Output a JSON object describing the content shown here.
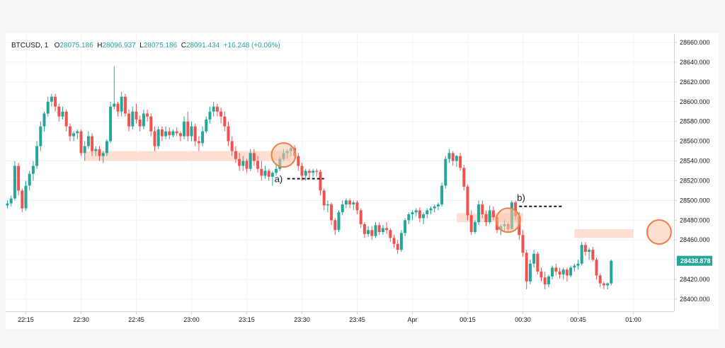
{
  "header": {
    "symbol": "BTCUSD",
    "interval": "1",
    "open_label": "O",
    "open": "28075.186",
    "high_label": "H",
    "high": "28096.937",
    "low_label": "L",
    "low": "28075.186",
    "close_label": "C",
    "close": "28091.434",
    "change": "+16.248 (+0.06%)"
  },
  "colors": {
    "up": "#26a69a",
    "down": "#ef5350",
    "zone": "#fde0d3",
    "circle_fill": "#f7c4a8",
    "circle_stroke": "#ef7d44",
    "price_tag": "#26a69a",
    "grid": "#f0f3fa"
  },
  "annotations": {
    "a": "a)",
    "b": "b)"
  },
  "chart_data": {
    "type": "candlestick",
    "symbol": "BTCUSD",
    "interval": "1",
    "x_ticks": [
      "22:15",
      "22:30",
      "22:45",
      "23:00",
      "23:15",
      "23:30",
      "23:45",
      "Apr",
      "00:15",
      "00:30",
      "00:45",
      "01:00"
    ],
    "x_tick_index": [
      5,
      20,
      35,
      50,
      65,
      80,
      95,
      110,
      125,
      140,
      155,
      170
    ],
    "y_ticks": [
      "28660.000",
      "28640.000",
      "28620.000",
      "28600.000",
      "28580.000",
      "28560.000",
      "28540.000",
      "28520.000",
      "28500.000",
      "28480.000",
      "28460.000",
      "28440.000",
      "28420.000",
      "28400.000"
    ],
    "ylim": [
      28392,
      28662
    ],
    "last_price": "28438.878",
    "candles": [
      [
        28495,
        28500,
        28492,
        28497
      ],
      [
        28497,
        28505,
        28494,
        28502
      ],
      [
        28502,
        28540,
        28500,
        28535
      ],
      [
        28535,
        28538,
        28505,
        28510
      ],
      [
        28510,
        28512,
        28488,
        28492
      ],
      [
        28492,
        28520,
        28490,
        28515
      ],
      [
        28515,
        28530,
        28510,
        28527
      ],
      [
        28527,
        28540,
        28520,
        28535
      ],
      [
        28535,
        28560,
        28532,
        28555
      ],
      [
        28555,
        28580,
        28550,
        28575
      ],
      [
        28575,
        28590,
        28570,
        28588
      ],
      [
        28588,
        28605,
        28585,
        28600
      ],
      [
        28600,
        28608,
        28595,
        28605
      ],
      [
        28605,
        28608,
        28590,
        28595
      ],
      [
        28595,
        28598,
        28580,
        28585
      ],
      [
        28585,
        28595,
        28582,
        28590
      ],
      [
        28590,
        28592,
        28570,
        28575
      ],
      [
        28575,
        28578,
        28560,
        28565
      ],
      [
        28565,
        28570,
        28560,
        28568
      ],
      [
        28568,
        28572,
        28562,
        28570
      ],
      [
        28570,
        28572,
        28545,
        28548
      ],
      [
        28548,
        28560,
        28540,
        28555
      ],
      [
        28555,
        28570,
        28552,
        28565
      ],
      [
        28565,
        28568,
        28545,
        28550
      ],
      [
        28550,
        28555,
        28545,
        28552
      ],
      [
        28552,
        28555,
        28540,
        28545
      ],
      [
        28545,
        28550,
        28538,
        28548
      ],
      [
        28548,
        28562,
        28545,
        28560
      ],
      [
        28560,
        28600,
        28558,
        28595
      ],
      [
        28595,
        28636,
        28592,
        28598
      ],
      [
        28598,
        28600,
        28585,
        28590
      ],
      [
        28590,
        28610,
        28585,
        28605
      ],
      [
        28605,
        28608,
        28585,
        28588
      ],
      [
        28588,
        28592,
        28570,
        28575
      ],
      [
        28575,
        28595,
        28572,
        28590
      ],
      [
        28590,
        28598,
        28578,
        28582
      ],
      [
        28582,
        28586,
        28570,
        28575
      ],
      [
        28575,
        28592,
        28572,
        28588
      ],
      [
        28588,
        28592,
        28580,
        28585
      ],
      [
        28585,
        28588,
        28565,
        28570
      ],
      [
        28570,
        28575,
        28550,
        28555
      ],
      [
        28555,
        28575,
        28552,
        28572
      ],
      [
        28572,
        28575,
        28560,
        28565
      ],
      [
        28565,
        28575,
        28562,
        28570
      ],
      [
        28570,
        28574,
        28562,
        28566
      ],
      [
        28566,
        28572,
        28564,
        28570
      ],
      [
        28570,
        28574,
        28565,
        28568
      ],
      [
        28568,
        28570,
        28560,
        28565
      ],
      [
        28565,
        28585,
        28562,
        28580
      ],
      [
        28580,
        28590,
        28560,
        28565
      ],
      [
        28565,
        28580,
        28560,
        28575
      ],
      [
        28575,
        28578,
        28555,
        28560
      ],
      [
        28560,
        28565,
        28550,
        28558
      ],
      [
        28558,
        28575,
        28555,
        28570
      ],
      [
        28570,
        28585,
        28568,
        28582
      ],
      [
        28582,
        28595,
        28578,
        28590
      ],
      [
        28590,
        28600,
        28585,
        28595
      ],
      [
        28595,
        28598,
        28585,
        28590
      ],
      [
        28590,
        28594,
        28578,
        28585
      ],
      [
        28585,
        28590,
        28570,
        28575
      ],
      [
        28575,
        28580,
        28555,
        28560
      ],
      [
        28560,
        28565,
        28545,
        28550
      ],
      [
        28550,
        28555,
        28538,
        28542
      ],
      [
        28542,
        28548,
        28530,
        28535
      ],
      [
        28535,
        28545,
        28530,
        28540
      ],
      [
        28540,
        28542,
        28528,
        28532
      ],
      [
        28532,
        28552,
        28530,
        28548
      ],
      [
        28548,
        28552,
        28535,
        28540
      ],
      [
        28540,
        28545,
        28528,
        28532
      ],
      [
        28532,
        28540,
        28520,
        28525
      ],
      [
        28525,
        28535,
        28522,
        28530
      ],
      [
        28530,
        28532,
        28520,
        28524
      ],
      [
        28524,
        28530,
        28515,
        28528
      ],
      [
        28528,
        28538,
        28525,
        28532
      ],
      [
        28532,
        28545,
        28530,
        28542
      ],
      [
        28542,
        28552,
        28540,
        28548
      ],
      [
        28548,
        28552,
        28542,
        28550
      ],
      [
        28550,
        28555,
        28545,
        28553
      ],
      [
        28553,
        28556,
        28540,
        28545
      ],
      [
        28545,
        28548,
        28530,
        28535
      ],
      [
        28535,
        28538,
        28520,
        28525
      ],
      [
        28525,
        28532,
        28520,
        28530
      ],
      [
        28530,
        28532,
        28522,
        28528
      ],
      [
        28528,
        28532,
        28524,
        28530
      ],
      [
        28530,
        28532,
        28524,
        28529
      ],
      [
        28529,
        28531,
        28505,
        28510
      ],
      [
        28510,
        28512,
        28490,
        28495
      ],
      [
        28495,
        28500,
        28488,
        28496
      ],
      [
        28496,
        28498,
        28475,
        28480
      ],
      [
        28480,
        28482,
        28465,
        28470
      ],
      [
        28470,
        28490,
        28468,
        28488
      ],
      [
        28488,
        28500,
        28485,
        28496
      ],
      [
        28496,
        28502,
        28492,
        28500
      ],
      [
        28500,
        28502,
        28492,
        28496
      ],
      [
        28496,
        28500,
        28490,
        28498
      ],
      [
        28498,
        28500,
        28486,
        28490
      ],
      [
        28490,
        28492,
        28472,
        28476
      ],
      [
        28476,
        28478,
        28462,
        28466
      ],
      [
        28466,
        28474,
        28463,
        28470
      ],
      [
        28470,
        28474,
        28460,
        28464
      ],
      [
        28464,
        28478,
        28462,
        28475
      ],
      [
        28475,
        28478,
        28465,
        28468
      ],
      [
        28468,
        28475,
        28465,
        28472
      ],
      [
        28472,
        28478,
        28466,
        28470
      ],
      [
        28470,
        28472,
        28458,
        28462
      ],
      [
        28462,
        28465,
        28452,
        28456
      ],
      [
        28456,
        28460,
        28446,
        28450
      ],
      [
        28450,
        28470,
        28448,
        28467
      ],
      [
        28467,
        28482,
        28464,
        28480
      ],
      [
        28480,
        28488,
        28476,
        28486
      ],
      [
        28486,
        28490,
        28480,
        28488
      ],
      [
        28488,
        28492,
        28484,
        28490
      ],
      [
        28490,
        28493,
        28478,
        28482
      ],
      [
        28482,
        28488,
        28476,
        28486
      ],
      [
        28486,
        28492,
        28482,
        28490
      ],
      [
        28490,
        28494,
        28486,
        28492
      ],
      [
        28492,
        28496,
        28488,
        28494
      ],
      [
        28494,
        28498,
        28490,
        28496
      ],
      [
        28496,
        28518,
        28494,
        28515
      ],
      [
        28515,
        28545,
        28512,
        28542
      ],
      [
        28542,
        28552,
        28538,
        28548
      ],
      [
        28548,
        28550,
        28535,
        28540
      ],
      [
        28540,
        28546,
        28534,
        28545
      ],
      [
        28545,
        28548,
        28530,
        28533
      ],
      [
        28533,
        28536,
        28510,
        28514
      ],
      [
        28514,
        28516,
        28480,
        28485
      ],
      [
        28485,
        28490,
        28465,
        28468
      ],
      [
        28468,
        28480,
        28466,
        28478
      ],
      [
        28478,
        28500,
        28475,
        28496
      ],
      [
        28496,
        28500,
        28482,
        28486
      ],
      [
        28486,
        28490,
        28474,
        28478
      ],
      [
        28478,
        28495,
        28476,
        28490
      ],
      [
        28490,
        28494,
        28480,
        28483
      ],
      [
        28483,
        28486,
        28467,
        28470
      ],
      [
        28470,
        28476,
        28465,
        28474
      ],
      [
        28474,
        28480,
        28468,
        28476
      ],
      [
        28476,
        28478,
        28468,
        28471
      ],
      [
        28471,
        28500,
        28470,
        28498
      ],
      [
        28498,
        28500,
        28480,
        28484
      ],
      [
        28484,
        28488,
        28460,
        28465
      ],
      [
        28465,
        28470,
        28443,
        28447
      ],
      [
        28447,
        28450,
        28410,
        28418
      ],
      [
        28418,
        28440,
        28415,
        28436
      ],
      [
        28436,
        28450,
        28432,
        28446
      ],
      [
        28446,
        28448,
        28425,
        28428
      ],
      [
        28428,
        28432,
        28418,
        28422
      ],
      [
        28422,
        28428,
        28410,
        28415
      ],
      [
        28415,
        28425,
        28412,
        28423
      ],
      [
        28423,
        28434,
        28420,
        28432
      ],
      [
        28432,
        28436,
        28424,
        28428
      ],
      [
        28428,
        28432,
        28421,
        28425
      ],
      [
        28425,
        28432,
        28420,
        28430
      ],
      [
        28430,
        28432,
        28418,
        28424
      ],
      [
        28424,
        28434,
        28422,
        28432
      ],
      [
        28432,
        28436,
        28428,
        28434
      ],
      [
        28434,
        28440,
        28430,
        28436
      ],
      [
        28436,
        28458,
        28434,
        28455
      ],
      [
        28455,
        28458,
        28444,
        28448
      ],
      [
        28448,
        28452,
        28440,
        28450
      ],
      [
        28450,
        28453,
        28438,
        28440
      ],
      [
        28440,
        28442,
        28420,
        28424
      ],
      [
        28424,
        28426,
        28412,
        28416
      ],
      [
        28416,
        28418,
        28410,
        28414
      ],
      [
        28414,
        28417,
        28410,
        28416
      ],
      [
        28416,
        28440,
        28414,
        28438.878
      ]
    ],
    "zones": [
      {
        "start": 21,
        "end": 77,
        "from": 28540,
        "to": 28550
      },
      {
        "start": 122,
        "end": 140,
        "from": 28478,
        "to": 28487
      },
      {
        "start": 154,
        "end": 170,
        "from": 28462,
        "to": 28471
      }
    ],
    "circles": [
      {
        "index": 75,
        "price": 28546
      },
      {
        "index": 136,
        "price": 28480
      },
      {
        "index": 177,
        "price": 28468
      }
    ],
    "lines": [
      {
        "label": "a)",
        "start": 76,
        "end": 86,
        "price": 28522
      },
      {
        "label": "b)",
        "start": 139,
        "end": 151,
        "price": 28494
      }
    ]
  }
}
